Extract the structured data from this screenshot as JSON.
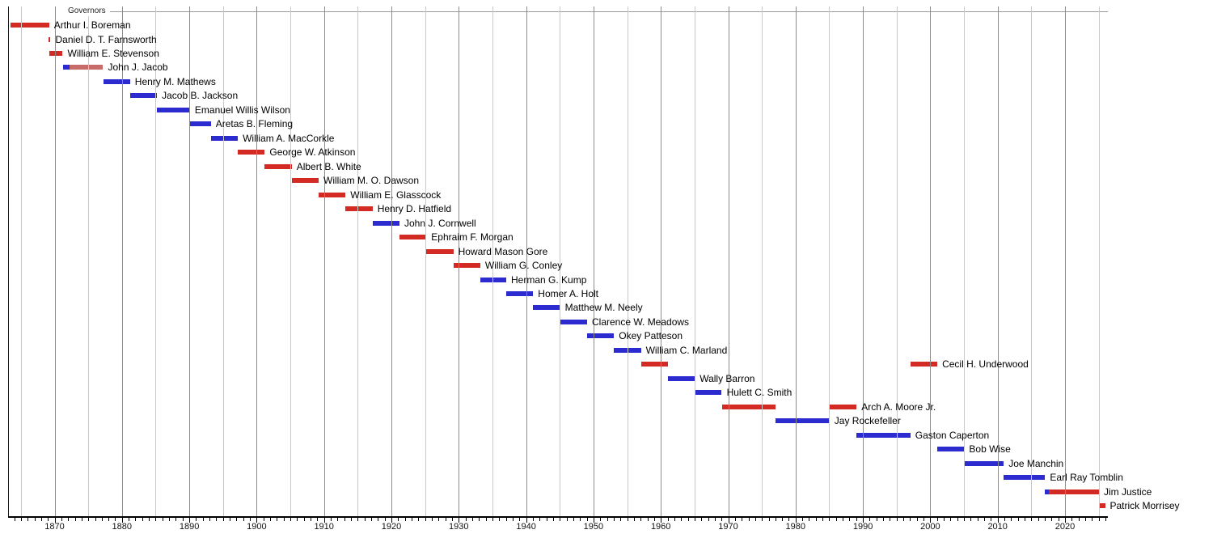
{
  "title": "Governors",
  "colors": {
    "red": "#d32a23",
    "blue": "#2b2bd0",
    "rose": "#c76b6b",
    "grid_major": "#8c8c8c",
    "grid_minor": "#c9c9c9",
    "axis": "#000000",
    "header_rule": "#999999",
    "label_text": "#000000"
  },
  "axis": {
    "start_year": 1863.1,
    "end_year": 2026.4,
    "gridline_interval_years": 5,
    "minor_tick_interval_years": 1,
    "tick_labels": [
      "1870",
      "1880",
      "1890",
      "1900",
      "1910",
      "1920",
      "1930",
      "1940",
      "1950",
      "1960",
      "1970",
      "1980",
      "1990",
      "2000",
      "2010",
      "2020"
    ]
  },
  "chart_data": {
    "type": "timeline",
    "title": "Governors",
    "x_range": [
      1863.1,
      2026.4
    ],
    "grid": "on",
    "rows": [
      {
        "name": "Arthur I. Boreman",
        "segments": [
          {
            "start": 1863.45,
            "end": 1869.2,
            "color": "red"
          }
        ]
      },
      {
        "name": "Daniel D. T. Farnsworth",
        "segments": [
          {
            "start": 1869.15,
            "end": 1869.4,
            "color": "red"
          }
        ]
      },
      {
        "name": "William E. Stevenson",
        "segments": [
          {
            "start": 1869.2,
            "end": 1871.2,
            "color": "red"
          }
        ]
      },
      {
        "name": "John J. Jacob",
        "segments": [
          {
            "start": 1871.2,
            "end": 1872.2,
            "color": "blue"
          },
          {
            "start": 1872.2,
            "end": 1877.2,
            "color": "rose"
          }
        ]
      },
      {
        "name": "Henry M. Mathews",
        "segments": [
          {
            "start": 1877.2,
            "end": 1881.2,
            "color": "blue"
          }
        ]
      },
      {
        "name": "Jacob B. Jackson",
        "segments": [
          {
            "start": 1881.2,
            "end": 1885.2,
            "color": "blue"
          }
        ]
      },
      {
        "name": "Emanuel Willis Wilson",
        "segments": [
          {
            "start": 1885.2,
            "end": 1890.1,
            "color": "blue"
          }
        ]
      },
      {
        "name": "Aretas B. Fleming",
        "segments": [
          {
            "start": 1890.1,
            "end": 1893.2,
            "color": "blue"
          }
        ]
      },
      {
        "name": "William A. MacCorkle",
        "segments": [
          {
            "start": 1893.2,
            "end": 1897.2,
            "color": "blue"
          }
        ]
      },
      {
        "name": "George W. Atkinson",
        "segments": [
          {
            "start": 1897.2,
            "end": 1901.2,
            "color": "red"
          }
        ]
      },
      {
        "name": "Albert B. White",
        "segments": [
          {
            "start": 1901.2,
            "end": 1905.2,
            "color": "red"
          }
        ]
      },
      {
        "name": "William M. O. Dawson",
        "segments": [
          {
            "start": 1905.2,
            "end": 1909.2,
            "color": "red"
          }
        ]
      },
      {
        "name": "William E. Glasscock",
        "segments": [
          {
            "start": 1909.2,
            "end": 1913.2,
            "color": "red"
          }
        ]
      },
      {
        "name": "Henry D. Hatfield",
        "segments": [
          {
            "start": 1913.2,
            "end": 1917.2,
            "color": "red"
          }
        ]
      },
      {
        "name": "John J. Cornwell",
        "segments": [
          {
            "start": 1917.2,
            "end": 1921.2,
            "color": "blue"
          }
        ]
      },
      {
        "name": "Ephraim F. Morgan",
        "segments": [
          {
            "start": 1921.2,
            "end": 1925.2,
            "color": "red"
          }
        ]
      },
      {
        "name": "Howard Mason Gore",
        "segments": [
          {
            "start": 1925.2,
            "end": 1929.2,
            "color": "red"
          }
        ]
      },
      {
        "name": "William G. Conley",
        "segments": [
          {
            "start": 1929.2,
            "end": 1933.2,
            "color": "red"
          }
        ]
      },
      {
        "name": "Herman G. Kump",
        "segments": [
          {
            "start": 1933.2,
            "end": 1937.05,
            "color": "blue"
          }
        ]
      },
      {
        "name": "Homer A. Holt",
        "segments": [
          {
            "start": 1937.05,
            "end": 1941.05,
            "color": "blue"
          }
        ]
      },
      {
        "name": "Matthew M. Neely",
        "segments": [
          {
            "start": 1941.05,
            "end": 1945.05,
            "color": "blue"
          }
        ]
      },
      {
        "name": "Clarence W. Meadows",
        "segments": [
          {
            "start": 1945.05,
            "end": 1949.05,
            "color": "blue"
          }
        ]
      },
      {
        "name": "Okey Patteson",
        "segments": [
          {
            "start": 1949.05,
            "end": 1953.05,
            "color": "blue"
          }
        ]
      },
      {
        "name": "William C. Marland",
        "segments": [
          {
            "start": 1953.05,
            "end": 1957.05,
            "color": "blue"
          }
        ]
      },
      {
        "name": "Cecil H. Underwood",
        "segments": [
          {
            "start": 1957.05,
            "end": 1961.05,
            "color": "red"
          },
          {
            "start": 1997.05,
            "end": 2001.05,
            "color": "red"
          }
        ]
      },
      {
        "name": "Wally Barron",
        "segments": [
          {
            "start": 1961.05,
            "end": 1965.05,
            "color": "blue"
          }
        ]
      },
      {
        "name": "Hulett C. Smith",
        "segments": [
          {
            "start": 1965.05,
            "end": 1969.05,
            "color": "blue"
          }
        ]
      },
      {
        "name": "Arch A. Moore Jr.",
        "segments": [
          {
            "start": 1969.05,
            "end": 1977.05,
            "color": "red"
          },
          {
            "start": 1985.05,
            "end": 1989.05,
            "color": "red"
          }
        ]
      },
      {
        "name": "Jay Rockefeller",
        "segments": [
          {
            "start": 1977.05,
            "end": 1985.05,
            "color": "blue"
          }
        ]
      },
      {
        "name": "Gaston Caperton",
        "segments": [
          {
            "start": 1989.05,
            "end": 1997.05,
            "color": "blue"
          }
        ]
      },
      {
        "name": "Bob Wise",
        "segments": [
          {
            "start": 2001.05,
            "end": 2005.05,
            "color": "blue"
          }
        ]
      },
      {
        "name": "Joe Manchin",
        "segments": [
          {
            "start": 2005.05,
            "end": 2010.9,
            "color": "blue"
          }
        ]
      },
      {
        "name": "Earl Ray Tomblin",
        "segments": [
          {
            "start": 2010.9,
            "end": 2017.05,
            "color": "blue"
          }
        ]
      },
      {
        "name": "Jim Justice",
        "segments": [
          {
            "start": 2017.05,
            "end": 2017.65,
            "color": "blue"
          },
          {
            "start": 2017.65,
            "end": 2025.05,
            "color": "red"
          }
        ]
      },
      {
        "name": "Patrick Morrisey",
        "segments": [
          {
            "start": 2025.05,
            "end": 2025.95,
            "color": "red"
          }
        ]
      }
    ]
  }
}
